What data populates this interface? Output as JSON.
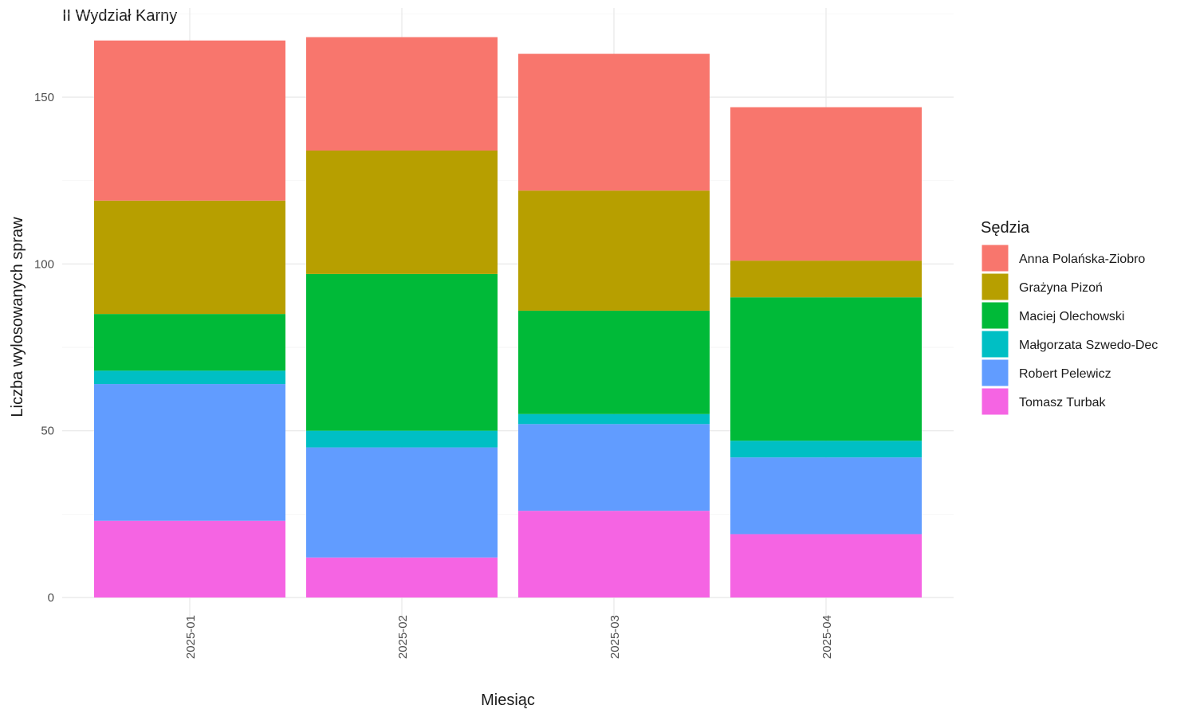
{
  "chart_data": {
    "type": "bar",
    "stacked": true,
    "title": "II Wydział Karny",
    "xlabel": "Miesiąc",
    "ylabel": "Liczba wylosowanych spraw",
    "categories": [
      "2025-01",
      "2025-02",
      "2025-03",
      "2025-04"
    ],
    "ylim": [
      0,
      170
    ],
    "yticks": [
      0,
      50,
      100,
      150
    ],
    "grid": true,
    "legend": {
      "title": "Sędzia",
      "position": "right"
    },
    "series": [
      {
        "name": "Tomasz Turbak",
        "color": "#F564E3",
        "values": [
          23,
          12,
          26,
          19
        ]
      },
      {
        "name": "Robert Pelewicz",
        "color": "#619CFF",
        "values": [
          41,
          33,
          26,
          23
        ]
      },
      {
        "name": "Małgorzata Szwedo-Dec",
        "color": "#00BFC4",
        "values": [
          4,
          5,
          3,
          5
        ]
      },
      {
        "name": "Maciej Olechowski",
        "color": "#00BA38",
        "values": [
          17,
          47,
          31,
          43
        ]
      },
      {
        "name": "Grażyna Pizoń",
        "color": "#B79F00",
        "values": [
          34,
          37,
          36,
          11
        ]
      },
      {
        "name": "Anna Polańska-Ziobro",
        "color": "#F8766D",
        "values": [
          48,
          34,
          41,
          46
        ]
      }
    ]
  }
}
